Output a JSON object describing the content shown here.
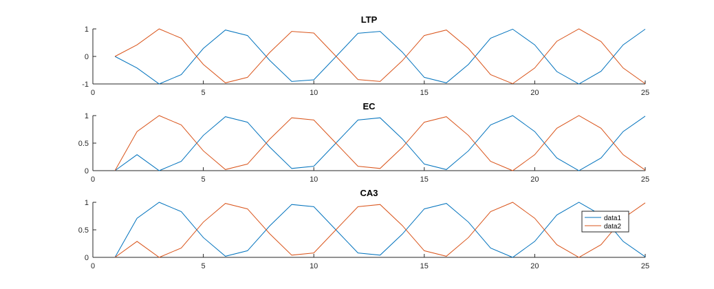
{
  "chart_data": [
    {
      "type": "line",
      "title": "LTP",
      "xlim": [
        0,
        25
      ],
      "ylim": [
        -1,
        1
      ],
      "xticks": [
        0,
        5,
        10,
        15,
        20,
        25
      ],
      "yticks": [
        -1,
        0,
        1
      ],
      "ytick_labels": [
        "-1",
        "0",
        "1"
      ],
      "x": [
        1,
        2,
        3,
        4,
        5,
        6,
        7,
        8,
        9,
        10,
        11,
        12,
        13,
        14,
        15,
        16,
        17,
        18,
        19,
        20,
        21,
        22,
        23,
        24,
        25
      ],
      "series": [
        {
          "name": "data1",
          "color": "#0072BD",
          "values": [
            0,
            -0.42,
            -1,
            -0.66,
            0.29,
            0.96,
            0.76,
            -0.14,
            -0.91,
            -0.85,
            -0.01,
            0.84,
            0.91,
            0.16,
            -0.76,
            -0.96,
            -0.29,
            0.66,
            0.99,
            0.42,
            -0.55,
            -1,
            -0.54,
            0.42,
            0.99
          ]
        },
        {
          "name": "data2",
          "color": "#D95319",
          "values": [
            0,
            0.42,
            1,
            0.66,
            -0.29,
            -0.96,
            -0.76,
            0.14,
            0.91,
            0.85,
            0.01,
            -0.84,
            -0.91,
            -0.16,
            0.76,
            0.96,
            0.29,
            -0.66,
            -0.99,
            -0.42,
            0.55,
            1,
            0.54,
            -0.42,
            -0.99
          ]
        }
      ],
      "legend": null
    },
    {
      "type": "line",
      "title": "EC",
      "xlim": [
        0,
        25
      ],
      "ylim": [
        0,
        1
      ],
      "xticks": [
        0,
        5,
        10,
        15,
        20,
        25
      ],
      "yticks": [
        0,
        0.5,
        1
      ],
      "ytick_labels": [
        "0",
        "0.5",
        "1"
      ],
      "x": [
        1,
        2,
        3,
        4,
        5,
        6,
        7,
        8,
        9,
        10,
        11,
        12,
        13,
        14,
        15,
        16,
        17,
        18,
        19,
        20,
        21,
        22,
        23,
        24,
        25
      ],
      "series": [
        {
          "name": "data1",
          "color": "#0072BD",
          "values": [
            0,
            0.29,
            0,
            0.17,
            0.64,
            0.98,
            0.88,
            0.43,
            0.04,
            0.08,
            0.5,
            0.92,
            0.96,
            0.58,
            0.12,
            0.02,
            0.36,
            0.83,
            1,
            0.71,
            0.23,
            0,
            0.23,
            0.71,
            0.99
          ]
        },
        {
          "name": "data2",
          "color": "#D95319",
          "values": [
            0,
            0.71,
            1,
            0.83,
            0.36,
            0.02,
            0.12,
            0.57,
            0.96,
            0.92,
            0.5,
            0.08,
            0.04,
            0.42,
            0.88,
            0.98,
            0.64,
            0.17,
            0,
            0.29,
            0.77,
            1,
            0.77,
            0.29,
            0.01
          ]
        }
      ],
      "legend": null
    },
    {
      "type": "line",
      "title": "CA3",
      "xlim": [
        0,
        25
      ],
      "ylim": [
        0,
        1
      ],
      "xticks": [
        0,
        5,
        10,
        15,
        20,
        25
      ],
      "yticks": [
        0,
        0.5,
        1
      ],
      "ytick_labels": [
        "0",
        "0.5",
        "1"
      ],
      "x": [
        1,
        2,
        3,
        4,
        5,
        6,
        7,
        8,
        9,
        10,
        11,
        12,
        13,
        14,
        15,
        16,
        17,
        18,
        19,
        20,
        21,
        22,
        23,
        24,
        25
      ],
      "series": [
        {
          "name": "data1",
          "color": "#0072BD",
          "values": [
            0,
            0.71,
            1,
            0.83,
            0.36,
            0.02,
            0.12,
            0.57,
            0.96,
            0.92,
            0.5,
            0.08,
            0.04,
            0.42,
            0.88,
            0.98,
            0.64,
            0.17,
            0,
            0.29,
            0.77,
            1,
            0.77,
            0.29,
            0.01
          ]
        },
        {
          "name": "data2",
          "color": "#D95319",
          "values": [
            0,
            0.29,
            0,
            0.17,
            0.64,
            0.98,
            0.88,
            0.43,
            0.04,
            0.08,
            0.5,
            0.92,
            0.96,
            0.58,
            0.12,
            0.02,
            0.36,
            0.83,
            1,
            0.71,
            0.23,
            0,
            0.23,
            0.71,
            0.99
          ]
        }
      ],
      "legend": {
        "location": "right",
        "entries": [
          "data1",
          "data2"
        ]
      }
    }
  ]
}
